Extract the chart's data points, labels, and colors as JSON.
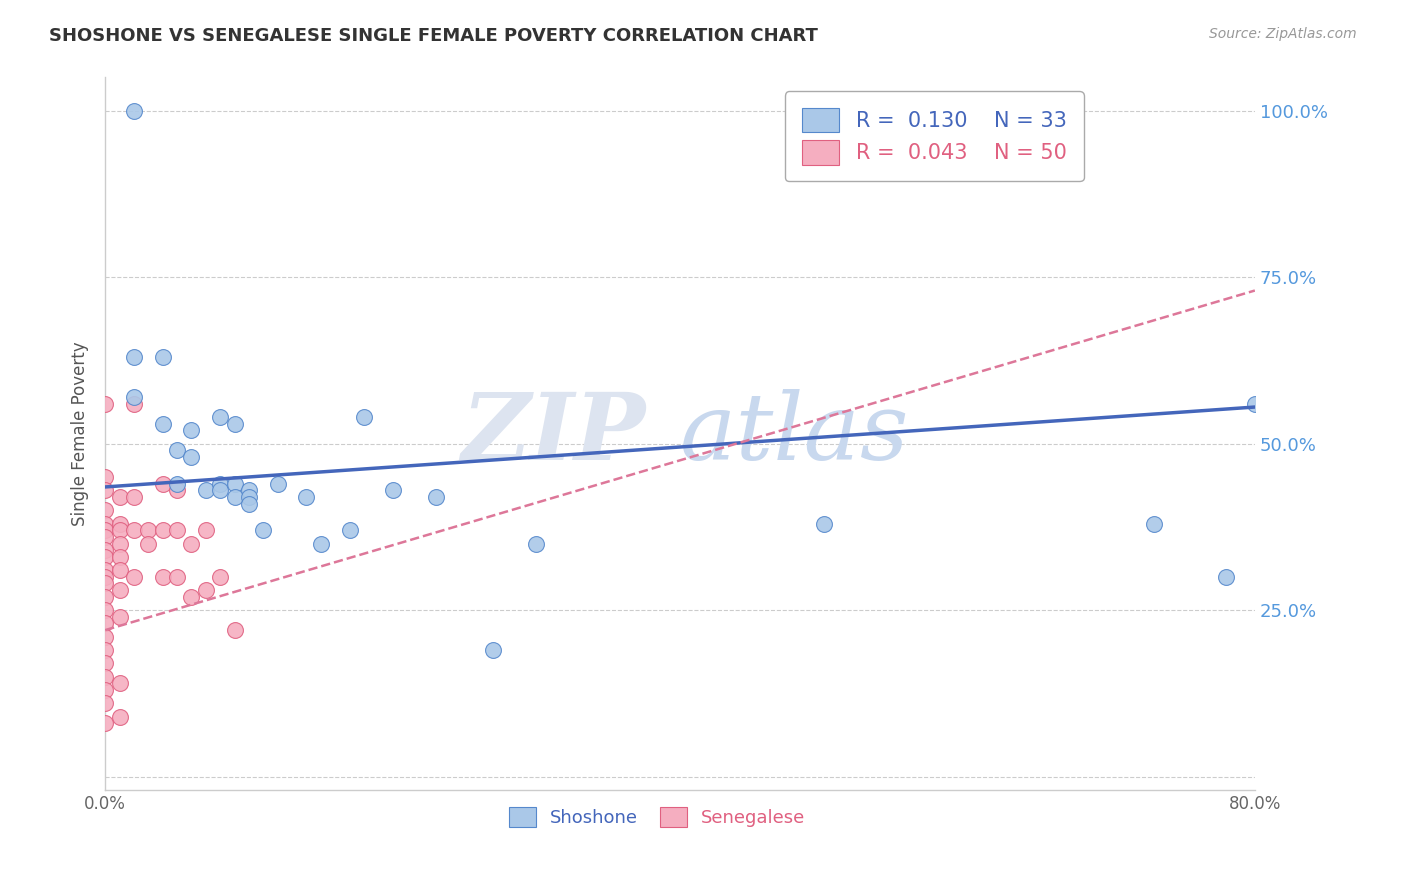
{
  "title": "SHOSHONE VS SENEGALESE SINGLE FEMALE POVERTY CORRELATION CHART",
  "source": "Source: ZipAtlas.com",
  "ylabel": "Single Female Poverty",
  "xlim": [
    0.0,
    0.8
  ],
  "ylim": [
    -0.02,
    1.05
  ],
  "xticks": [
    0.0,
    0.1,
    0.2,
    0.3,
    0.4,
    0.5,
    0.6,
    0.7,
    0.8
  ],
  "xticklabels": [
    "0.0%",
    "",
    "",
    "",
    "",
    "",
    "",
    "",
    "80.0%"
  ],
  "yticks": [
    0.0,
    0.25,
    0.5,
    0.75,
    1.0
  ],
  "yticklabels_right": [
    "",
    "25.0%",
    "50.0%",
    "75.0%",
    "100.0%"
  ],
  "shoshone_fill_color": "#aac8e8",
  "senegalese_fill_color": "#f5aec0",
  "shoshone_edge_color": "#5588cc",
  "senegalese_edge_color": "#e06080",
  "shoshone_line_color": "#4466bb",
  "senegalese_line_color": "#dd7799",
  "legend_shoshone_R": "0.130",
  "legend_shoshone_N": "33",
  "legend_senegalese_R": "0.043",
  "legend_senegalese_N": "50",
  "watermark_zip": "ZIP",
  "watermark_atlas": "atlas",
  "shoshone_x": [
    0.02,
    0.02,
    0.02,
    0.04,
    0.04,
    0.05,
    0.05,
    0.06,
    0.06,
    0.07,
    0.08,
    0.08,
    0.08,
    0.09,
    0.09,
    0.09,
    0.1,
    0.1,
    0.1,
    0.11,
    0.12,
    0.14,
    0.15,
    0.17,
    0.18,
    0.2,
    0.23,
    0.27,
    0.3,
    0.5,
    0.73,
    0.78,
    0.8
  ],
  "shoshone_y": [
    1.0,
    0.63,
    0.57,
    0.63,
    0.53,
    0.49,
    0.44,
    0.52,
    0.48,
    0.43,
    0.54,
    0.44,
    0.43,
    0.53,
    0.44,
    0.42,
    0.43,
    0.42,
    0.41,
    0.37,
    0.44,
    0.42,
    0.35,
    0.37,
    0.54,
    0.43,
    0.42,
    0.19,
    0.35,
    0.38,
    0.38,
    0.3,
    0.56
  ],
  "senegalese_x": [
    0.0,
    0.0,
    0.0,
    0.0,
    0.0,
    0.0,
    0.0,
    0.0,
    0.0,
    0.0,
    0.0,
    0.0,
    0.0,
    0.0,
    0.0,
    0.0,
    0.0,
    0.0,
    0.0,
    0.0,
    0.0,
    0.0,
    0.01,
    0.01,
    0.01,
    0.01,
    0.01,
    0.01,
    0.01,
    0.01,
    0.01,
    0.01,
    0.02,
    0.02,
    0.02,
    0.02,
    0.03,
    0.03,
    0.04,
    0.04,
    0.04,
    0.05,
    0.05,
    0.05,
    0.06,
    0.06,
    0.07,
    0.07,
    0.08,
    0.09
  ],
  "senegalese_y": [
    0.56,
    0.45,
    0.43,
    0.4,
    0.38,
    0.37,
    0.36,
    0.34,
    0.33,
    0.31,
    0.3,
    0.29,
    0.27,
    0.25,
    0.23,
    0.21,
    0.19,
    0.17,
    0.15,
    0.13,
    0.11,
    0.08,
    0.42,
    0.38,
    0.37,
    0.35,
    0.33,
    0.31,
    0.28,
    0.24,
    0.14,
    0.09,
    0.56,
    0.42,
    0.37,
    0.3,
    0.37,
    0.35,
    0.44,
    0.37,
    0.3,
    0.43,
    0.37,
    0.3,
    0.35,
    0.27,
    0.37,
    0.28,
    0.3,
    0.22
  ],
  "shoshone_trend_x0": 0.0,
  "shoshone_trend_y0": 0.435,
  "shoshone_trend_x1": 0.8,
  "shoshone_trend_y1": 0.555,
  "senegalese_trend_x0": 0.0,
  "senegalese_trend_y0": 0.22,
  "senegalese_trend_x1": 0.8,
  "senegalese_trend_y1": 0.73
}
